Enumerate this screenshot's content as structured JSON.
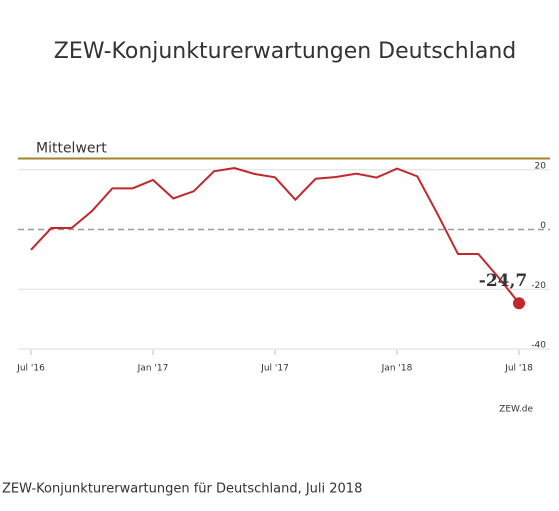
{
  "chart_data": {
    "type": "line",
    "title": "ZEW-Konjunkturerwartungen Deutschland",
    "categories": [
      "Jul '16",
      null,
      null,
      null,
      null,
      null,
      "Jan '17",
      null,
      null,
      null,
      null,
      null,
      "Jul '17",
      null,
      null,
      null,
      null,
      null,
      "Jan '18",
      null,
      null,
      null,
      null,
      null,
      "Jul '18"
    ],
    "values": [
      -6.8,
      0.5,
      0.5,
      6.2,
      13.8,
      13.8,
      16.6,
      10.4,
      12.8,
      19.5,
      20.6,
      18.6,
      17.5,
      10.0,
      17.0,
      17.6,
      18.7,
      17.4,
      20.4,
      17.8,
      5.1,
      -8.2,
      -8.2,
      -16.1,
      -24.7
    ],
    "value_labels": [
      null,
      null,
      null,
      null,
      null,
      null,
      null,
      null,
      null,
      null,
      null,
      null,
      null,
      null,
      null,
      null,
      null,
      null,
      null,
      null,
      null,
      null,
      null,
      null,
      "-24,7"
    ],
    "color": "#c0282d",
    "mean": {
      "label": "Mittelwert",
      "value": 23.8,
      "color": "#a08428"
    },
    "ylim": [
      -40,
      35
    ],
    "yticks": [
      20,
      0,
      -20,
      -40
    ],
    "grid": true,
    "source": "ZEW.de",
    "caption": "ZEW-Konjunkturerwartungen für Deutschland, Juli 2018"
  }
}
